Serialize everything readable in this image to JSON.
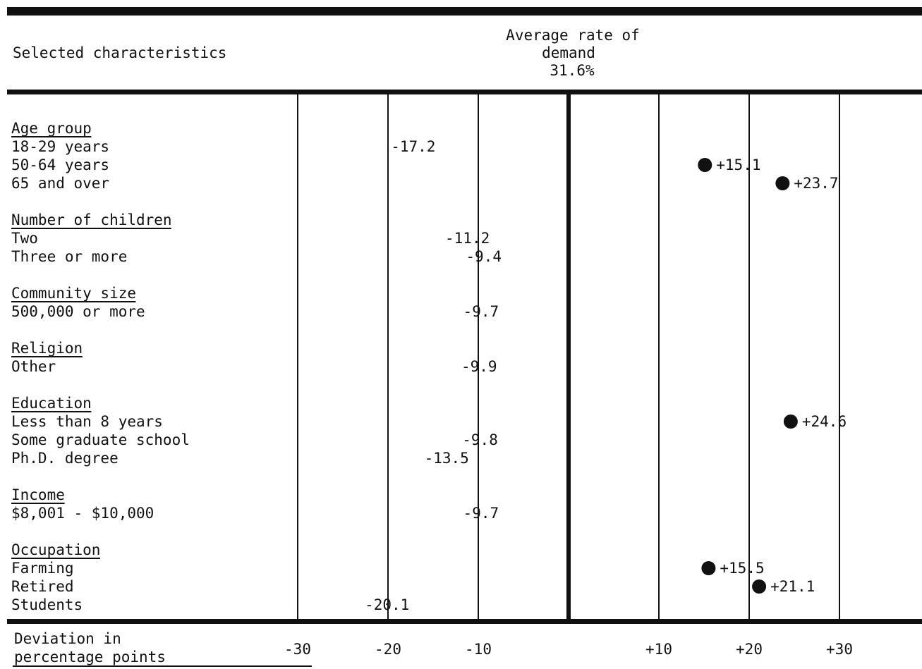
{
  "chart_data": {
    "type": "scatter",
    "header": {
      "left": "Selected characteristics",
      "right_lines": [
        "Average rate of",
        "demand",
        "31.6%"
      ]
    },
    "xlabel_lines": [
      "Deviation in",
      "percentage points"
    ],
    "xlim": [
      -30,
      30
    ],
    "ticks": [
      {
        "value": -30,
        "label": "-30"
      },
      {
        "value": -20,
        "label": "-20"
      },
      {
        "value": -10,
        "label": "-10"
      },
      {
        "value": 10,
        "label": "+10"
      },
      {
        "value": 20,
        "label": "+20"
      },
      {
        "value": 30,
        "label": "+30"
      }
    ],
    "groups": [
      {
        "name": "Age group",
        "items": [
          {
            "label": "18-29 years",
            "value": -17.2,
            "text": "-17.2"
          },
          {
            "label": "50-64 years",
            "value": 15.1,
            "text": "+15.1"
          },
          {
            "label": "65 and over",
            "value": 23.7,
            "text": "+23.7"
          }
        ]
      },
      {
        "name": "Number of children",
        "items": [
          {
            "label": "Two",
            "value": -11.2,
            "text": "-11.2"
          },
          {
            "label": "Three or more",
            "value": -9.4,
            "text": "-9.4"
          }
        ]
      },
      {
        "name": "Community size",
        "items": [
          {
            "label": "500,000 or more",
            "value": -9.7,
            "text": "-9.7"
          }
        ]
      },
      {
        "name": "Religion",
        "items": [
          {
            "label": "Other",
            "value": -9.9,
            "text": "-9.9"
          }
        ]
      },
      {
        "name": "Education",
        "items": [
          {
            "label": "Less than 8 years",
            "value": 24.6,
            "text": "+24.6"
          },
          {
            "label": "Some graduate school",
            "value": -9.8,
            "text": "-9.8"
          },
          {
            "label": "Ph.D. degree",
            "value": -13.5,
            "text": "-13.5"
          }
        ]
      },
      {
        "name": "Income",
        "items": [
          {
            "label": "$8,001 - $10,000",
            "value": -9.7,
            "text": "-9.7"
          }
        ]
      },
      {
        "name": "Occupation",
        "items": [
          {
            "label": "Farming",
            "value": 15.5,
            "text": "+15.5"
          },
          {
            "label": "Retired",
            "value": 21.1,
            "text": "+21.1"
          },
          {
            "label": "Students",
            "value": -20.1,
            "text": "-20.1"
          }
        ]
      }
    ]
  }
}
